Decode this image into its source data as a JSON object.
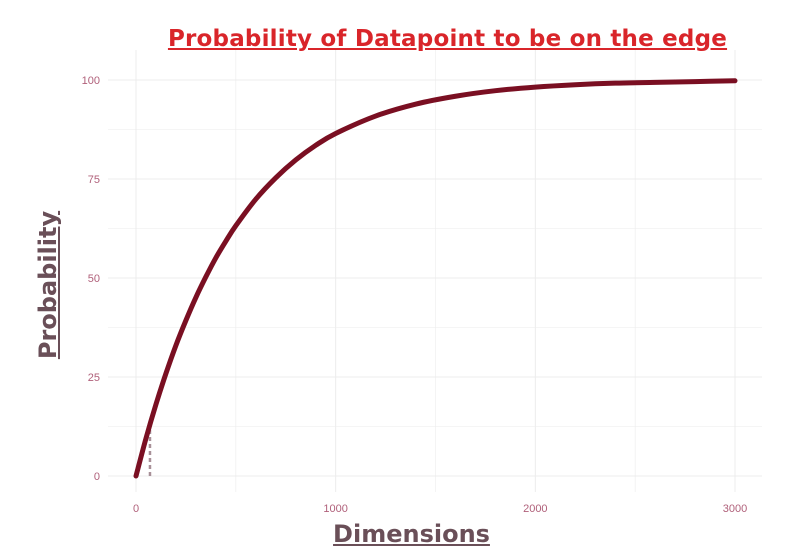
{
  "colors": {
    "title": "#d9252a",
    "curve": "#7a0f22",
    "axis_label": "#6a4f58",
    "tick": "#b0607a",
    "grid": "#ececec",
    "marker": "#a89098"
  },
  "chart_data": {
    "type": "line",
    "title": "Probability of Datapoint to be on the edge",
    "xlabel": "Dimensions",
    "ylabel": "Probability",
    "xlim": [
      0,
      3000
    ],
    "ylim": [
      0,
      100
    ],
    "x_ticks": [
      "0",
      "1000",
      "2000",
      "3000"
    ],
    "y_ticks": [
      "0",
      "25",
      "50",
      "75",
      "100"
    ],
    "grid": true,
    "legend": "none",
    "series": [
      {
        "x": [
          0,
          50,
          100,
          150,
          200,
          250,
          300,
          350,
          400,
          450,
          500,
          600,
          700,
          800,
          900,
          1000,
          1200,
          1400,
          1600,
          1800,
          2000,
          2200,
          2400,
          2600,
          2800,
          3000
        ],
        "values": [
          0,
          9.5,
          18.1,
          25.9,
          33.0,
          39.3,
          45.1,
          50.3,
          55.1,
          59.3,
          63.2,
          69.9,
          75.3,
          79.8,
          83.5,
          86.5,
          90.9,
          93.9,
          95.9,
          97.3,
          98.2,
          98.8,
          99.2,
          99.4,
          99.6,
          99.8
        ]
      }
    ],
    "annotations": [
      {
        "type": "dashed-vertical-line",
        "x": 70,
        "y_from": 0,
        "y_to": 12
      }
    ]
  }
}
